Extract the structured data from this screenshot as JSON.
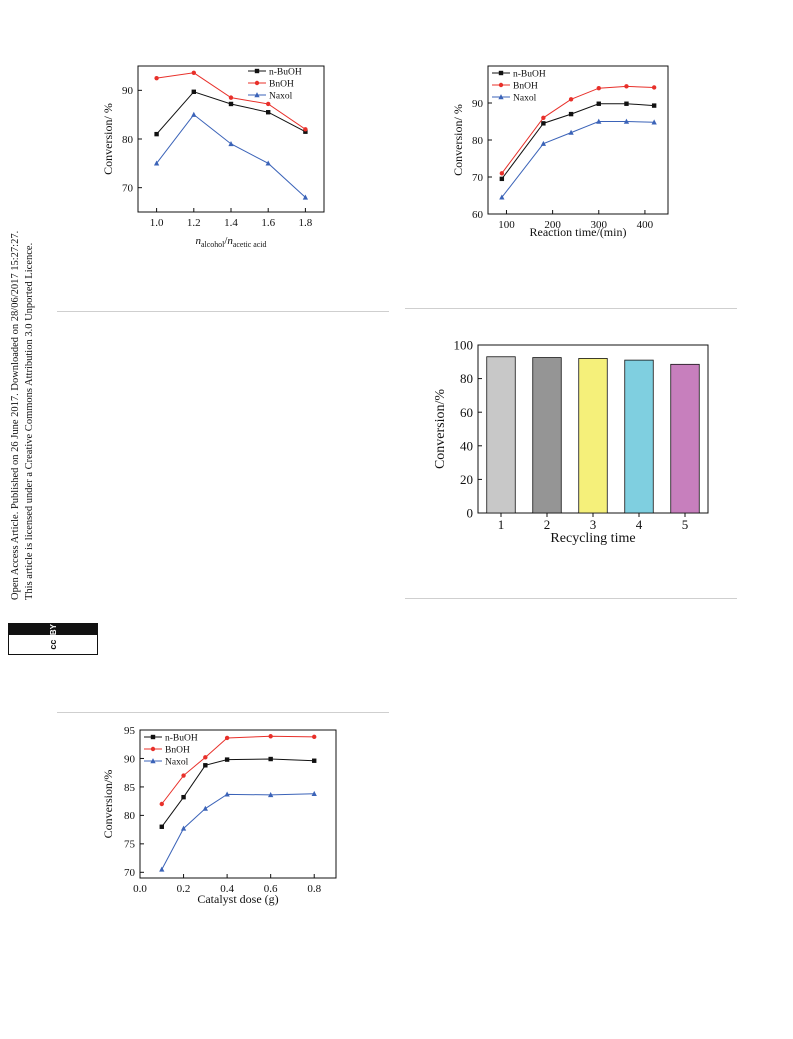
{
  "sidebar": {
    "line1": "Open Access Article. Published on 26 June 2017. Downloaded on 28/06/2017 15:27:27.",
    "line2": "This article is licensed under a Creative Commons Attribution 3.0 Unported Licence.",
    "badge_left": "cc",
    "badge_right": "BY"
  },
  "chart_data": [
    {
      "id": "chart1",
      "type": "line",
      "x": [
        1.0,
        1.2,
        1.4,
        1.6,
        1.8
      ],
      "xlim": [
        0.9,
        1.9
      ],
      "ylim": [
        65,
        95
      ],
      "xticks": [
        1.0,
        1.2,
        1.4,
        1.6,
        1.8
      ],
      "xtick_labels": [
        "1.0",
        "1.2",
        "1.4",
        "1.6",
        "1.8"
      ],
      "yticks": [
        70,
        80,
        90
      ],
      "ytick_labels": [
        "70",
        "80",
        "90"
      ],
      "xlabel_parts": {
        "n1": "n",
        "sub1": "alcohol",
        "slash": "/",
        "n2": "n",
        "sub2": "acetic acid"
      },
      "ylabel": "Conversion/ %",
      "legend_position": "top-right",
      "series": [
        {
          "name": "n-BuOH",
          "color": "#111111",
          "marker": "square",
          "values": [
            81.0,
            89.7,
            87.2,
            85.5,
            81.5
          ]
        },
        {
          "name": "BnOH",
          "color": "#e8302a",
          "marker": "circle",
          "values": [
            92.5,
            93.6,
            88.5,
            87.2,
            82.0
          ]
        },
        {
          "name": "Naxol",
          "color": "#3b63b8",
          "marker": "triangle",
          "values": [
            75.0,
            85.0,
            79.0,
            75.0,
            68.0
          ]
        }
      ]
    },
    {
      "id": "chart2",
      "type": "line",
      "x": [
        90,
        180,
        240,
        300,
        360,
        420
      ],
      "xlim": [
        60,
        450
      ],
      "ylim": [
        60,
        100
      ],
      "xticks": [
        100,
        200,
        300,
        400
      ],
      "xtick_labels": [
        "100",
        "200",
        "300",
        "400"
      ],
      "yticks": [
        60,
        70,
        80,
        90
      ],
      "ytick_labels": [
        "60",
        "70",
        "80",
        "90"
      ],
      "xlabel": "Reaction time/(min)",
      "ylabel": "Conversion/ %",
      "legend_position": "top-left",
      "series": [
        {
          "name": "n-BuOH",
          "color": "#111111",
          "marker": "square",
          "values": [
            69.5,
            84.5,
            87.0,
            89.8,
            89.8,
            89.3
          ]
        },
        {
          "name": "BnOH",
          "color": "#e8302a",
          "marker": "circle",
          "values": [
            71.0,
            86.0,
            91.0,
            94.0,
            94.5,
            94.2
          ]
        },
        {
          "name": "Naxol",
          "color": "#3b63b8",
          "marker": "triangle",
          "values": [
            64.5,
            79.0,
            82.0,
            85.0,
            85.0,
            84.8
          ]
        }
      ]
    },
    {
      "id": "chart3",
      "type": "bar",
      "categories": [
        "1",
        "2",
        "3",
        "4",
        "5"
      ],
      "values": [
        93.0,
        92.5,
        92.0,
        91.0,
        88.5
      ],
      "colors": [
        "#c8c8c8",
        "#959595",
        "#f5f07a",
        "#7fcfe0",
        "#c77fbd"
      ],
      "ylim": [
        0,
        100
      ],
      "yticks": [
        0,
        20,
        40,
        60,
        80,
        100
      ],
      "ytick_labels": [
        "0",
        "20",
        "40",
        "60",
        "80",
        "100"
      ],
      "xlabel": "Recycling time",
      "ylabel": "Conversion/%"
    },
    {
      "id": "chart4",
      "type": "line",
      "x": [
        0.1,
        0.2,
        0.3,
        0.4,
        0.6,
        0.8
      ],
      "xlim": [
        0.0,
        0.9
      ],
      "ylim": [
        69,
        95
      ],
      "xticks": [
        0.0,
        0.2,
        0.4,
        0.6,
        0.8
      ],
      "xtick_labels": [
        "0.0",
        "0.2",
        "0.4",
        "0.6",
        "0.8"
      ],
      "yticks": [
        70,
        75,
        80,
        85,
        90,
        95
      ],
      "ytick_labels": [
        "70",
        "75",
        "80",
        "85",
        "90",
        "95"
      ],
      "xlabel": "Catalyst dose (g)",
      "ylabel": "Conversion/%",
      "legend_position": "top-left",
      "series": [
        {
          "name": "n-BuOH",
          "color": "#111111",
          "marker": "square",
          "values": [
            78.0,
            83.2,
            88.8,
            89.8,
            89.9,
            89.6
          ]
        },
        {
          "name": "BnOH",
          "color": "#e8302a",
          "marker": "circle",
          "values": [
            82.0,
            87.0,
            90.2,
            93.6,
            93.9,
            93.8
          ]
        },
        {
          "name": "Naxol",
          "color": "#3b63b8",
          "marker": "triangle",
          "values": [
            70.5,
            77.7,
            81.2,
            83.7,
            83.6,
            83.8
          ]
        }
      ]
    }
  ]
}
